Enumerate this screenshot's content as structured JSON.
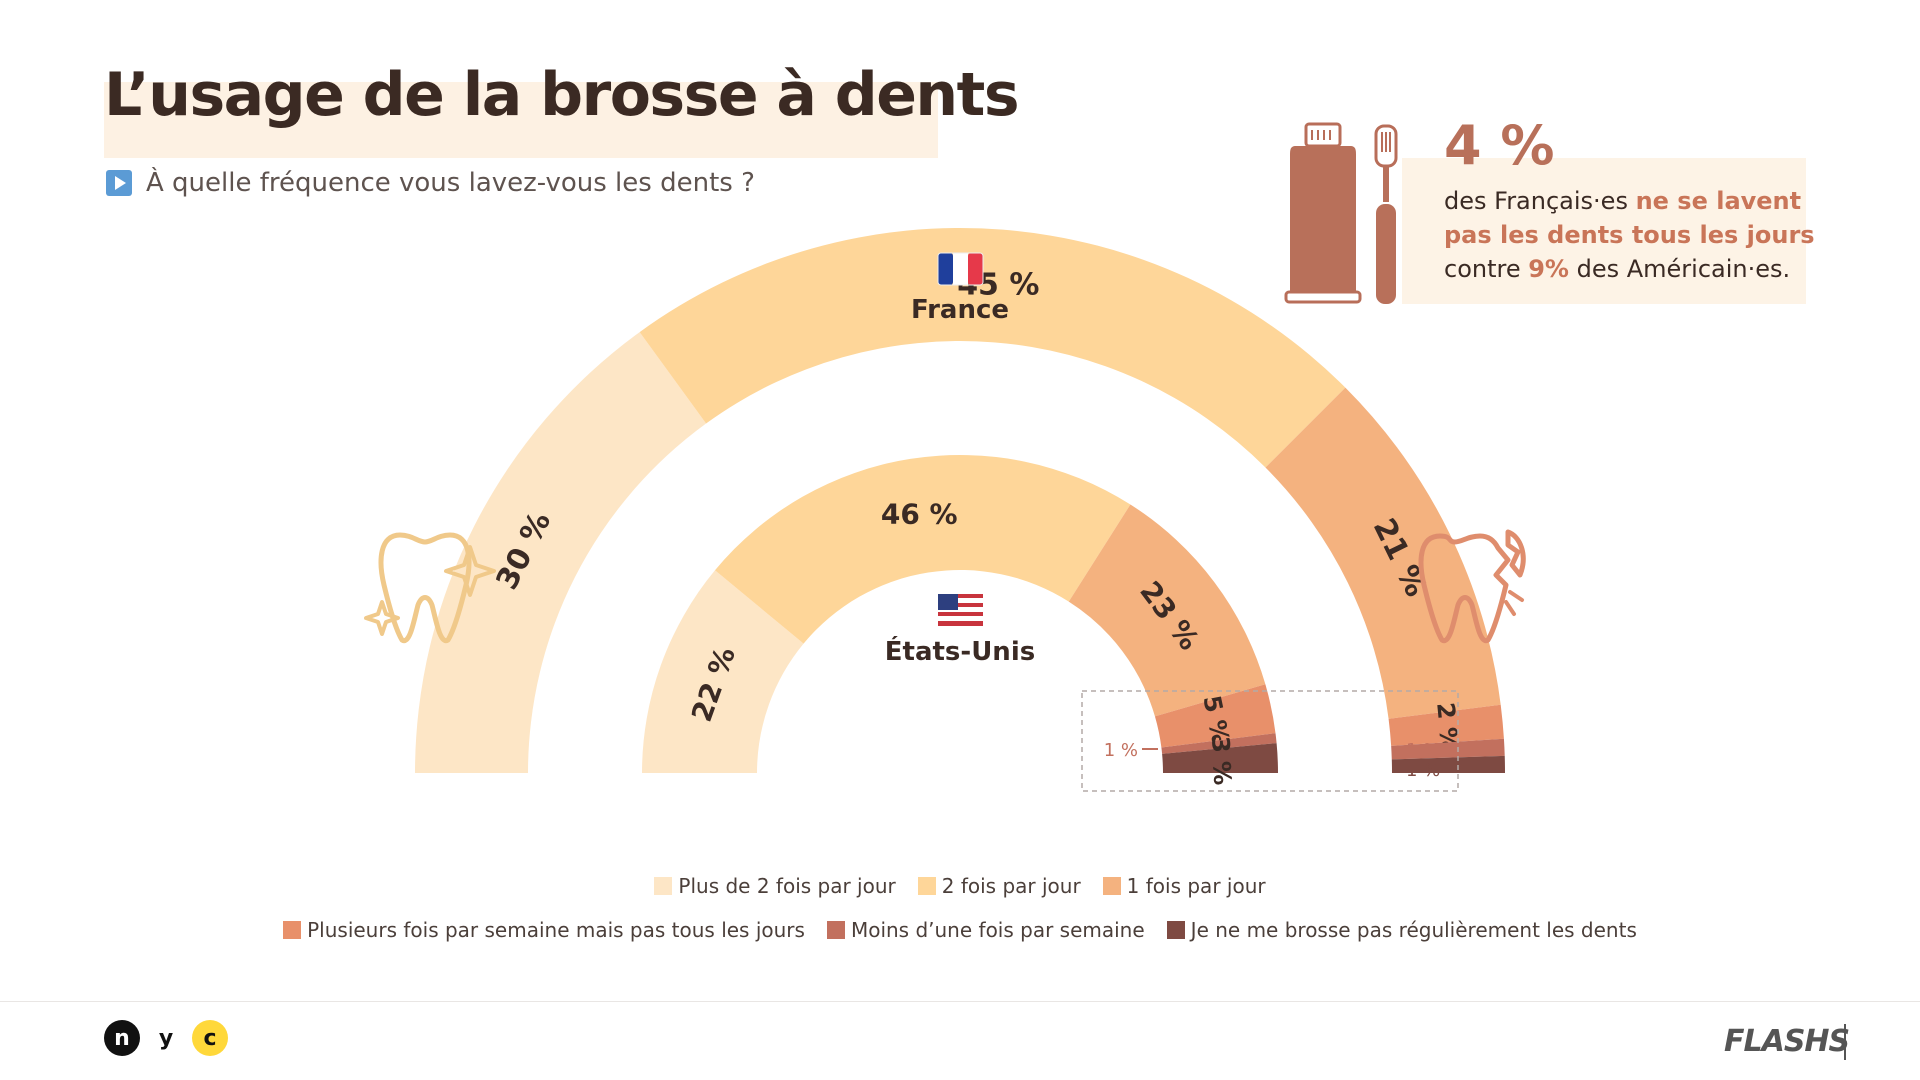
{
  "header": {
    "title": "L’usage de la brosse à dents",
    "question": "À quelle fréquence vous lavez-vous les dents ?"
  },
  "callout": {
    "big": "4 %",
    "line1_plain": "des Français·es ",
    "line1_bold": "ne se lavent",
    "line2_bold": "pas les dents tous les jours",
    "line3_a": "contre ",
    "line3_bold": "9%",
    "line3_b": " des Américain·es."
  },
  "chart_data": {
    "type": "pie",
    "subtype": "concentric semicircle",
    "categories": [
      "Plus de 2 fois par jour",
      "2 fois par jour",
      "1 fois par jour",
      "Plusieurs fois par semaine mais pas tous les jours",
      "Moins d’une fois par semaine",
      "Je ne me brosse pas régulièrement les dents"
    ],
    "colors": [
      "#fde6c6",
      "#fed699",
      "#f4b27f",
      "#e8906a",
      "#c2705e",
      "#7e4a42"
    ],
    "series": [
      {
        "name": "France",
        "values": [
          30,
          45,
          21,
          2,
          1,
          1
        ],
        "labels": [
          "30 %",
          "45 %",
          "21 %",
          "2 %",
          "1 %",
          "1 %"
        ]
      },
      {
        "name": "États-Unis",
        "values": [
          22,
          46,
          23,
          5,
          1,
          3
        ],
        "labels": [
          "22 %",
          "46 %",
          "23 %",
          "5 %",
          "1 %",
          "3 %"
        ]
      }
    ]
  },
  "legend": {
    "row1": [
      {
        "label": "Plus de 2 fois par jour",
        "color": "#fde6c6"
      },
      {
        "label": "2 fois par jour",
        "color": "#fed699"
      },
      {
        "label": "1 fois par jour",
        "color": "#f4b27f"
      }
    ],
    "row2": [
      {
        "label": "Plusieurs fois par semaine mais pas tous les jours",
        "color": "#e8906a"
      },
      {
        "label": "Moins d’une fois par semaine",
        "color": "#c2705e"
      },
      {
        "label": "Je ne me brosse pas régulièrement les dents",
        "color": "#7e4a42"
      }
    ]
  },
  "footer": {
    "logo_letters": [
      "n",
      "y",
      "c"
    ],
    "brand": "FLASHS"
  },
  "icons": [
    "france-flag-icon",
    "usa-flag-icon",
    "clean-tooth-icon",
    "broken-tooth-icon",
    "toothpaste-icon",
    "toothbrush-icon",
    "play-icon"
  ]
}
